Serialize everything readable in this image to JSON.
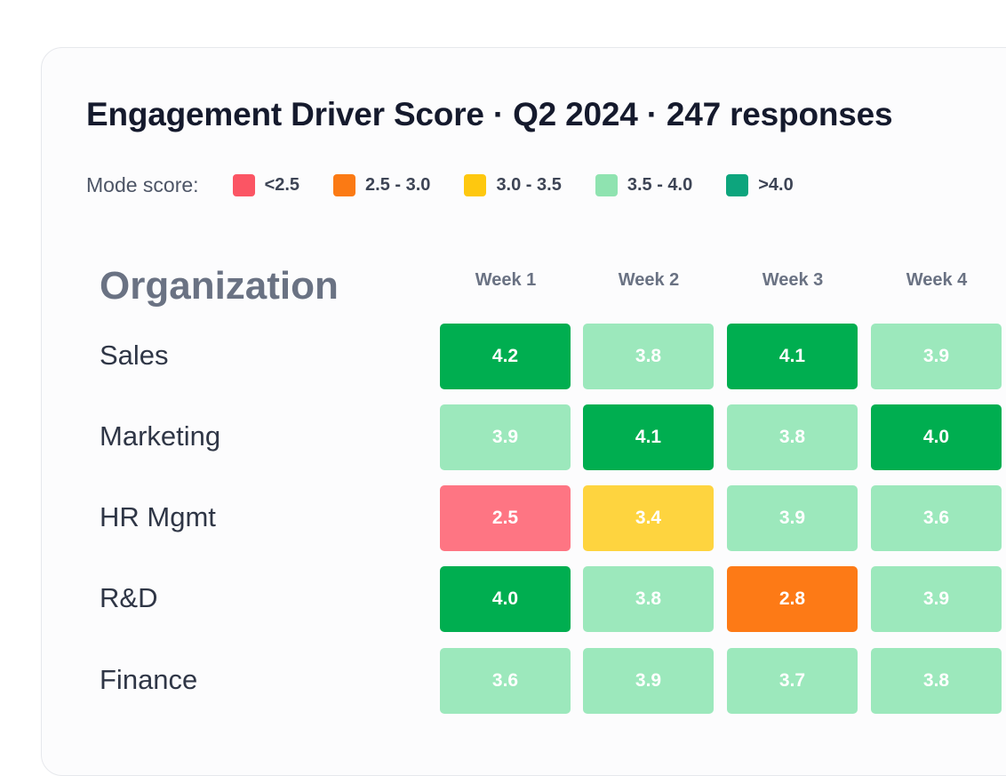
{
  "chart_data": {
    "type": "heatmap",
    "title": "Engagement Driver Score · Q2 2024 · 247 responses",
    "row_axis_label": "Organization",
    "columns": [
      "Week 1",
      "Week 2",
      "Week 3",
      "Week 4"
    ],
    "rows": [
      "Sales",
      "Marketing",
      "HR Mgmt",
      "R&D",
      "Finance"
    ],
    "values": [
      [
        "4.2",
        "3.8",
        "4.1",
        "3.9"
      ],
      [
        "3.9",
        "4.1",
        "3.8",
        "4.0"
      ],
      [
        "2.5",
        "3.4",
        "3.9",
        "3.6"
      ],
      [
        "4.0",
        "3.8",
        "2.8",
        "3.9"
      ],
      [
        "3.6",
        "3.9",
        "3.7",
        "3.8"
      ]
    ],
    "legend": {
      "label": "Mode score:",
      "items": [
        {
          "label": "<2.5",
          "color": "#fb5564"
        },
        {
          "label": "2.5 - 3.0",
          "color": "#fb7a14"
        },
        {
          "label": "3.0 - 3.5",
          "color": "#fec80f"
        },
        {
          "label": "3.5 - 4.0",
          "color": "#8fe3b0"
        },
        {
          "label": ">4.0",
          "color": "#0da57d"
        }
      ]
    },
    "cell_colors": {
      "low": "#fe7583",
      "mid_low": "#fd7a16",
      "mid": "#fed43f",
      "mid_high": "#9ce8bc",
      "high": "#00ae50"
    }
  }
}
